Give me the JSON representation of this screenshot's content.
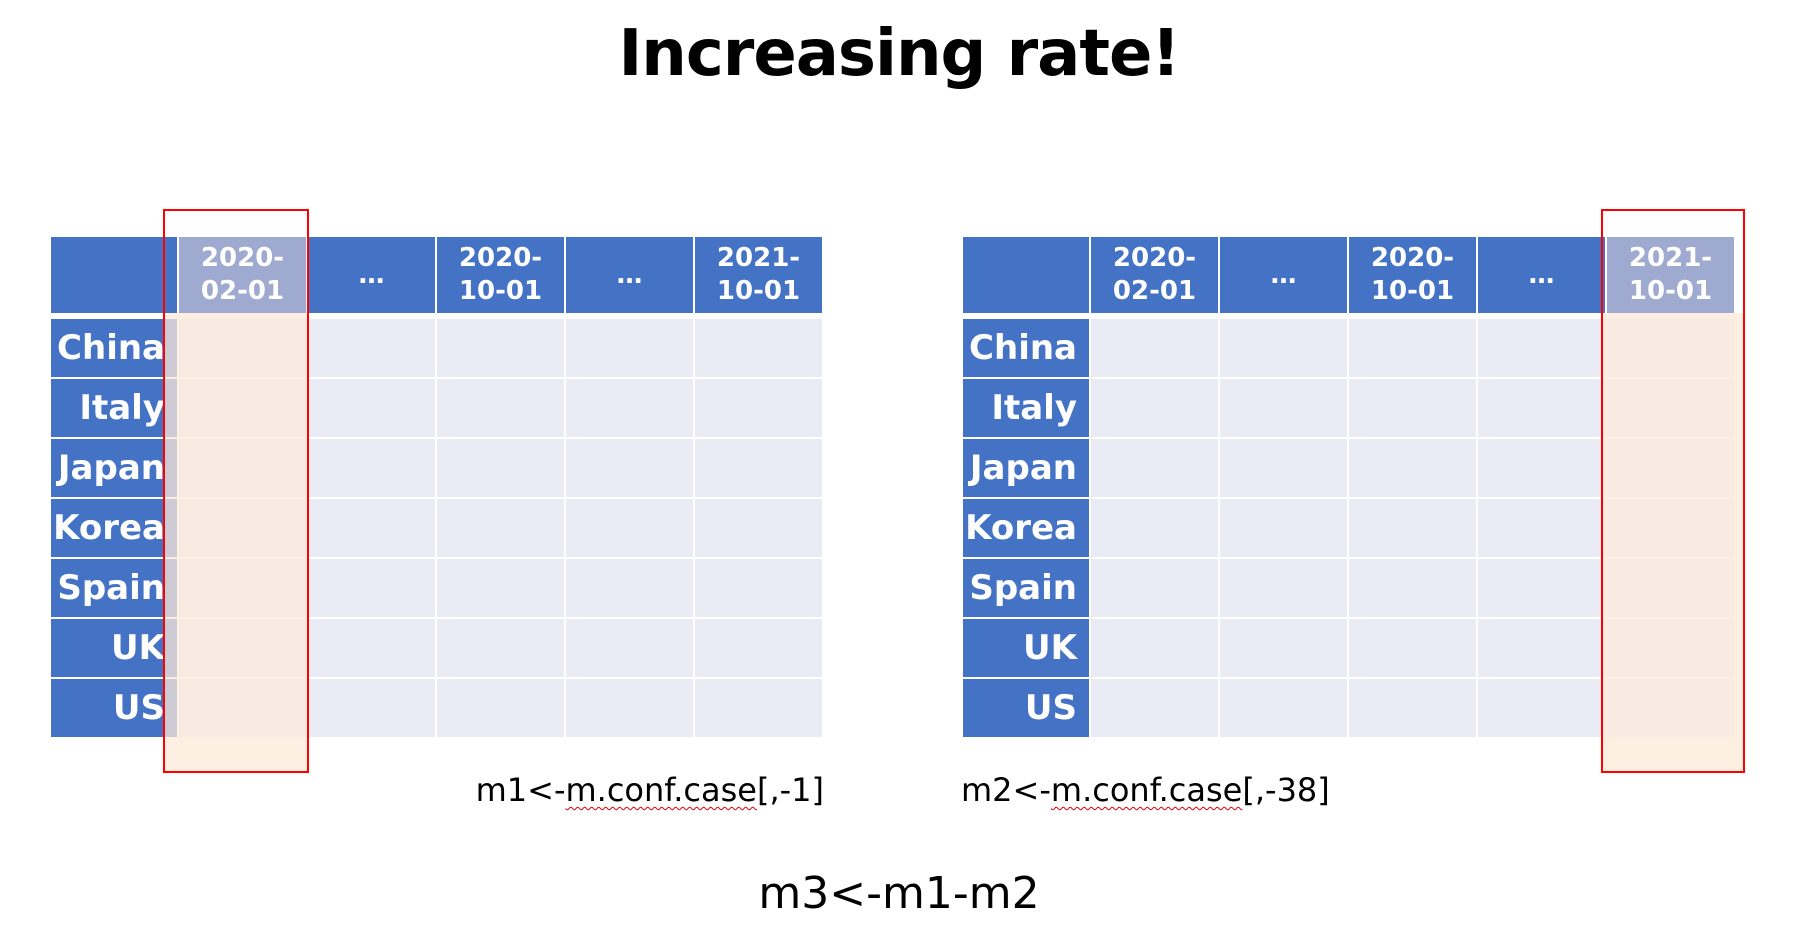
{
  "title": "Increasing rate!",
  "table_left": {
    "columns": [
      "2020-\n02-01",
      "…",
      "2020-\n10-01",
      "…",
      "2021-\n10-01"
    ],
    "rows": [
      "China",
      "Italy",
      "Japan",
      "Korea",
      "Spain",
      "UK",
      "US"
    ],
    "highlighted_column": 0
  },
  "table_right": {
    "columns": [
      "2020-\n02-01",
      "…",
      "2020-\n10-01",
      "…",
      "2021-\n10-01"
    ],
    "rows": [
      "China",
      "Italy",
      "Japan",
      "Korea",
      "Spain",
      "UK",
      "US"
    ],
    "highlighted_column": 4
  },
  "code_left": {
    "prefix": "m1<-",
    "func": "m.conf.case",
    "suffix": "[,-1]"
  },
  "code_right": {
    "prefix": "m2<-",
    "func": "m.conf.case",
    "suffix": "[,-38]"
  },
  "formula": "m3<-m1-m2",
  "colors": {
    "header": "#4472C4",
    "header_dim": "#9FAAD0",
    "body": "#E9EBF5",
    "highlight_border": "#FF0000",
    "highlight_fill": "#FDEADA"
  }
}
